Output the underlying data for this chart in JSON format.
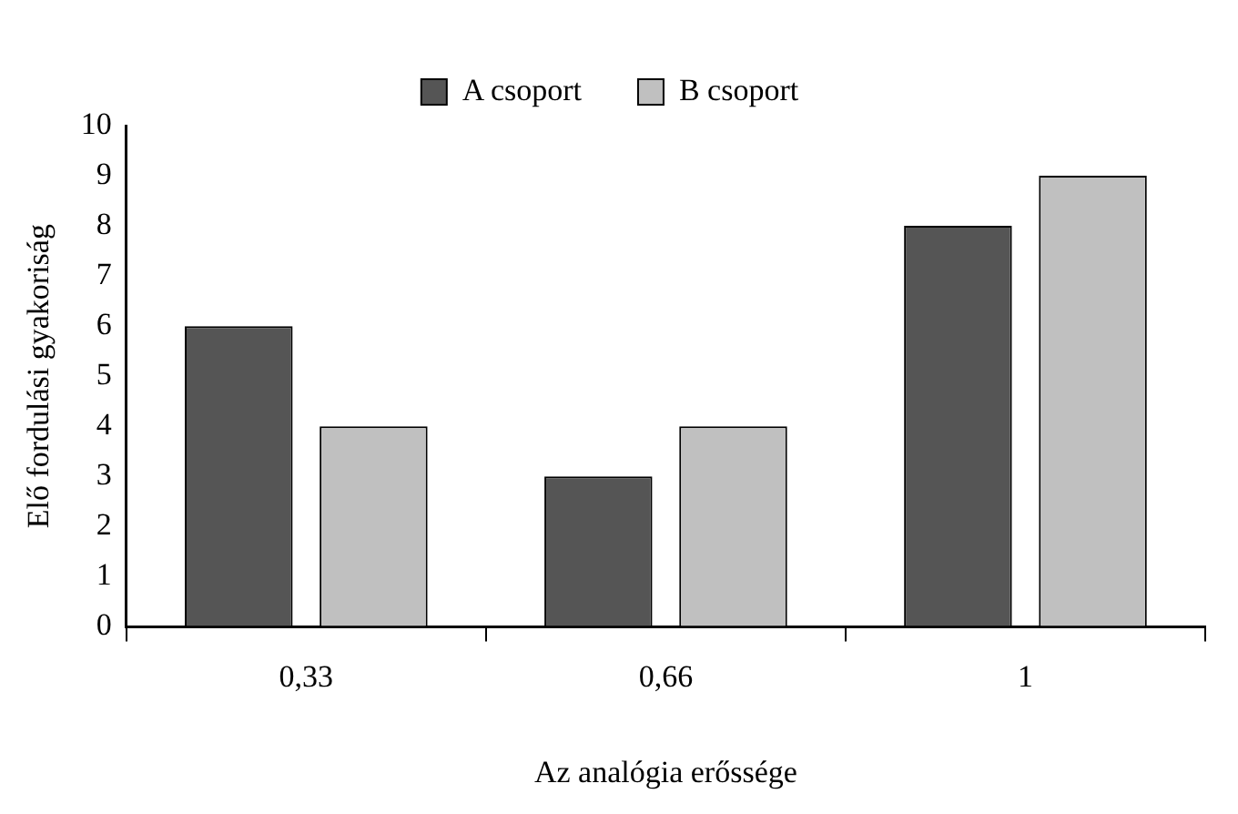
{
  "chart_data": {
    "type": "bar",
    "xlabel": "Az analógia erőssége",
    "ylabel": "Elő fordulási gyakoriság",
    "categories": [
      "0,33",
      "0,66",
      "1"
    ],
    "series": [
      {
        "name": "A csoport",
        "color": "#555555",
        "values": [
          6,
          3,
          8
        ]
      },
      {
        "name": "B csoport",
        "color": "#c0c0c0",
        "values": [
          4,
          4,
          9
        ]
      }
    ],
    "ylim": [
      0,
      10
    ],
    "yticks": [
      0,
      1,
      2,
      3,
      4,
      5,
      6,
      7,
      8,
      9,
      10
    ],
    "legend": "top"
  }
}
